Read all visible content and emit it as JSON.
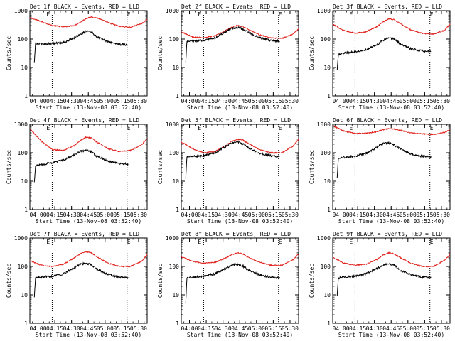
{
  "figure": {
    "colors": {
      "events": "#000000",
      "lld": "#e0201b",
      "axes": "#000000",
      "marker": "#000000"
    },
    "marker_letter": "E",
    "ylabel": "Counts/sec"
  },
  "chart_data": [
    {
      "type": "line",
      "title": "Det 1f BLACK = Events, RED = LLD",
      "xlabel": "Start Time (13-Nov-08 03:52:40)",
      "ylabel": "Counts/sec",
      "y_scale": "log",
      "ylim": [
        1,
        1000
      ],
      "y_ticks": [
        "1",
        "10",
        "100",
        "1000"
      ],
      "xlim_min_from_start": [
        0,
        105
      ],
      "x_ticks": [
        "04:00",
        "04:15",
        "04:30",
        "04:45",
        "05:00",
        "05:15",
        "05:30"
      ],
      "marker_lines_min": [
        20,
        87
      ],
      "series": [
        {
          "name": "LLD",
          "color": "red",
          "x": [
            0,
            10,
            20,
            30,
            40,
            45,
            50,
            55,
            60,
            70,
            80,
            90,
            100,
            105
          ],
          "values": [
            560,
            420,
            300,
            270,
            300,
            390,
            520,
            600,
            560,
            380,
            280,
            260,
            350,
            480
          ]
        },
        {
          "name": "Events",
          "color": "black",
          "x": [
            4,
            5,
            6,
            10,
            20,
            30,
            40,
            45,
            50,
            55,
            60,
            70,
            80,
            88
          ],
          "values": [
            15,
            65,
            68,
            68,
            70,
            75,
            110,
            150,
            190,
            180,
            120,
            80,
            65,
            62
          ]
        }
      ]
    },
    {
      "type": "line",
      "title": "Det 2f BLACK = Events, RED = LLD",
      "xlabel": "Start Time (13-Nov-08 03:52:40)",
      "ylabel": "Counts/sec",
      "y_scale": "log",
      "ylim": [
        1,
        1000
      ],
      "y_ticks": [
        "1",
        "10",
        "100",
        "1000"
      ],
      "xlim_min_from_start": [
        0,
        105
      ],
      "x_ticks": [
        "04:00",
        "04:15",
        "04:30",
        "04:45",
        "05:00",
        "05:15",
        "05:30"
      ],
      "marker_lines_min": [
        20,
        87
      ],
      "series": [
        {
          "name": "LLD",
          "color": "red",
          "x": [
            0,
            10,
            20,
            30,
            40,
            45,
            50,
            55,
            60,
            70,
            80,
            90,
            100,
            105
          ],
          "values": [
            180,
            120,
            110,
            130,
            200,
            260,
            300,
            280,
            220,
            140,
            110,
            105,
            150,
            230
          ]
        },
        {
          "name": "Events",
          "color": "black",
          "x": [
            4,
            5,
            6,
            10,
            20,
            30,
            40,
            45,
            50,
            55,
            60,
            70,
            80,
            88
          ],
          "values": [
            15,
            80,
            82,
            85,
            90,
            110,
            180,
            230,
            260,
            230,
            170,
            110,
            90,
            85
          ]
        }
      ]
    },
    {
      "type": "line",
      "title": "Det 3f BLACK = Events, RED = LLD",
      "xlabel": "Start Time (13-Nov-08 03:52:40)",
      "ylabel": "Counts/sec",
      "y_scale": "log",
      "ylim": [
        1,
        1000
      ],
      "y_ticks": [
        "1",
        "10",
        "100",
        "1000"
      ],
      "xlim_min_from_start": [
        0,
        105
      ],
      "x_ticks": [
        "04:00",
        "04:15",
        "04:30",
        "04:45",
        "05:00",
        "05:15",
        "05:30"
      ],
      "marker_lines_min": [
        20,
        87
      ],
      "series": [
        {
          "name": "LLD",
          "color": "red",
          "x": [
            0,
            10,
            20,
            30,
            40,
            45,
            50,
            55,
            60,
            70,
            80,
            90,
            100,
            105
          ],
          "values": [
            330,
            200,
            160,
            180,
            280,
            400,
            520,
            480,
            360,
            210,
            160,
            150,
            200,
            330
          ]
        },
        {
          "name": "Events",
          "color": "black",
          "x": [
            4,
            5,
            6,
            10,
            20,
            30,
            40,
            45,
            50,
            55,
            60,
            70,
            80,
            88
          ],
          "values": [
            8,
            28,
            30,
            32,
            36,
            42,
            65,
            90,
            110,
            100,
            70,
            45,
            38,
            36
          ]
        }
      ]
    },
    {
      "type": "line",
      "title": "Det 4f BLACK = Events, RED = LLD",
      "xlabel": "Start Time (13-Nov-08 03:52:40)",
      "ylabel": "Counts/sec",
      "y_scale": "log",
      "ylim": [
        1,
        1000
      ],
      "y_ticks": [
        "1",
        "10",
        "100",
        "1000"
      ],
      "xlim_min_from_start": [
        0,
        105
      ],
      "x_ticks": [
        "04:00",
        "04:15",
        "04:30",
        "04:45",
        "05:00",
        "05:15",
        "05:30"
      ],
      "marker_lines_min": [
        20,
        87
      ],
      "series": [
        {
          "name": "LLD",
          "color": "red",
          "x": [
            0,
            10,
            20,
            30,
            40,
            45,
            50,
            55,
            60,
            70,
            80,
            90,
            100,
            105
          ],
          "values": [
            700,
            260,
            130,
            120,
            180,
            260,
            350,
            330,
            240,
            140,
            110,
            120,
            190,
            320
          ]
        },
        {
          "name": "Events",
          "color": "black",
          "x": [
            4,
            5,
            6,
            10,
            20,
            30,
            40,
            45,
            50,
            55,
            60,
            70,
            80,
            88
          ],
          "values": [
            9,
            32,
            35,
            38,
            45,
            55,
            85,
            110,
            125,
            110,
            75,
            50,
            42,
            40
          ]
        }
      ]
    },
    {
      "type": "line",
      "title": "Det 5f BLACK = Events, RED = LLD",
      "xlabel": "Start Time (13-Nov-08 03:52:40)",
      "ylabel": "Counts/sec",
      "y_scale": "log",
      "ylim": [
        1,
        1000
      ],
      "y_ticks": [
        "1",
        "10",
        "100",
        "1000"
      ],
      "xlim_min_from_start": [
        0,
        105
      ],
      "x_ticks": [
        "04:00",
        "04:15",
        "04:30",
        "04:45",
        "05:00",
        "05:15",
        "05:30"
      ],
      "marker_lines_min": [
        20,
        87
      ],
      "series": [
        {
          "name": "LLD",
          "color": "red",
          "x": [
            0,
            10,
            20,
            30,
            40,
            45,
            50,
            55,
            60,
            70,
            80,
            90,
            100,
            105
          ],
          "values": [
            240,
            140,
            100,
            110,
            180,
            250,
            300,
            280,
            210,
            130,
            100,
            100,
            170,
            300
          ]
        },
        {
          "name": "Events",
          "color": "black",
          "x": [
            4,
            5,
            6,
            10,
            20,
            30,
            40,
            45,
            50,
            55,
            60,
            70,
            80,
            88
          ],
          "values": [
            12,
            70,
            72,
            74,
            80,
            100,
            170,
            220,
            240,
            210,
            150,
            95,
            78,
            72
          ]
        }
      ]
    },
    {
      "type": "line",
      "title": "Det 6f BLACK = Events, RED = LLD",
      "xlabel": "Start Time (13-Nov-08 03:52:40)",
      "ylabel": "Counts/sec",
      "y_scale": "log",
      "ylim": [
        1,
        1000
      ],
      "y_ticks": [
        "1",
        "10",
        "100",
        "1000"
      ],
      "xlim_min_from_start": [
        0,
        105
      ],
      "x_ticks": [
        "04:00",
        "04:15",
        "04:30",
        "04:45",
        "05:00",
        "05:15",
        "05:30"
      ],
      "marker_lines_min": [
        20,
        87
      ],
      "series": [
        {
          "name": "LLD",
          "color": "red",
          "x": [
            0,
            10,
            20,
            30,
            40,
            45,
            50,
            55,
            60,
            70,
            80,
            90,
            100,
            105
          ],
          "values": [
            900,
            580,
            480,
            480,
            560,
            640,
            700,
            690,
            620,
            500,
            460,
            440,
            520,
            640
          ]
        },
        {
          "name": "Events",
          "color": "black",
          "x": [
            4,
            5,
            6,
            10,
            20,
            30,
            40,
            45,
            50,
            55,
            60,
            70,
            80,
            88
          ],
          "values": [
            13,
            65,
            68,
            70,
            75,
            95,
            160,
            210,
            220,
            190,
            140,
            90,
            75,
            72
          ]
        }
      ]
    },
    {
      "type": "line",
      "title": "Det 7f BLACK = Events, RED = LLD",
      "xlabel": "Start Time (13-Nov-08 03:52:40)",
      "ylabel": "Counts/sec",
      "y_scale": "log",
      "ylim": [
        1,
        1000
      ],
      "y_ticks": [
        "1",
        "10",
        "100",
        "1000"
      ],
      "xlim_min_from_start": [
        0,
        105
      ],
      "x_ticks": [
        "04:00",
        "04:15",
        "04:30",
        "04:45",
        "05:00",
        "05:15",
        "05:30"
      ],
      "marker_lines_min": [
        20,
        87
      ],
      "series": [
        {
          "name": "LLD",
          "color": "red",
          "x": [
            0,
            10,
            20,
            30,
            40,
            45,
            50,
            55,
            60,
            70,
            80,
            90,
            100,
            105
          ],
          "values": [
            160,
            110,
            100,
            120,
            200,
            280,
            330,
            300,
            220,
            130,
            100,
            100,
            150,
            260
          ]
        },
        {
          "name": "Events",
          "color": "black",
          "x": [
            4,
            5,
            6,
            10,
            20,
            30,
            40,
            45,
            50,
            55,
            60,
            70,
            80,
            88
          ],
          "values": [
            8,
            38,
            40,
            42,
            45,
            55,
            90,
            120,
            130,
            115,
            80,
            52,
            42,
            40
          ]
        }
      ]
    },
    {
      "type": "line",
      "title": "Det 8f BLACK = Events, RED = LLD",
      "xlabel": "Start Time (13-Nov-08 03:52:40)",
      "ylabel": "Counts/sec",
      "y_scale": "log",
      "ylim": [
        1,
        1000
      ],
      "y_ticks": [
        "1",
        "10",
        "100",
        "1000"
      ],
      "xlim_min_from_start": [
        0,
        105
      ],
      "x_ticks": [
        "04:00",
        "04:15",
        "04:30",
        "04:45",
        "05:00",
        "05:15",
        "05:30"
      ],
      "marker_lines_min": [
        20,
        87
      ],
      "series": [
        {
          "name": "LLD",
          "color": "red",
          "x": [
            0,
            10,
            20,
            30,
            40,
            45,
            50,
            55,
            60,
            70,
            80,
            90,
            100,
            105
          ],
          "values": [
            220,
            150,
            130,
            140,
            200,
            260,
            300,
            280,
            210,
            140,
            110,
            110,
            170,
            280
          ]
        },
        {
          "name": "Events",
          "color": "black",
          "x": [
            4,
            5,
            6,
            10,
            20,
            30,
            40,
            45,
            50,
            55,
            60,
            70,
            80,
            88
          ],
          "values": [
            5,
            38,
            40,
            42,
            45,
            55,
            85,
            110,
            120,
            105,
            75,
            50,
            42,
            40
          ]
        }
      ]
    },
    {
      "type": "line",
      "title": "Det 9f BLACK = Events, RED = LLD",
      "xlabel": "Start Time (13-Nov-08 03:52:40)",
      "ylabel": "Counts/sec",
      "y_scale": "log",
      "ylim": [
        1,
        1000
      ],
      "y_ticks": [
        "1",
        "10",
        "100",
        "1000"
      ],
      "xlim_min_from_start": [
        0,
        105
      ],
      "x_ticks": [
        "04:00",
        "04:15",
        "04:30",
        "04:45",
        "05:00",
        "05:15",
        "05:30"
      ],
      "marker_lines_min": [
        20,
        87
      ],
      "series": [
        {
          "name": "LLD",
          "color": "red",
          "x": [
            0,
            10,
            20,
            30,
            40,
            45,
            50,
            55,
            60,
            70,
            80,
            90,
            100,
            105
          ],
          "values": [
            210,
            130,
            110,
            120,
            180,
            250,
            300,
            280,
            210,
            130,
            100,
            100,
            160,
            270
          ]
        },
        {
          "name": "Events",
          "color": "black",
          "x": [
            4,
            5,
            6,
            10,
            20,
            30,
            40,
            45,
            50,
            55,
            60,
            70,
            80,
            88
          ],
          "values": [
            9,
            38,
            40,
            42,
            45,
            55,
            85,
            110,
            125,
            110,
            75,
            50,
            42,
            40
          ]
        }
      ]
    }
  ]
}
